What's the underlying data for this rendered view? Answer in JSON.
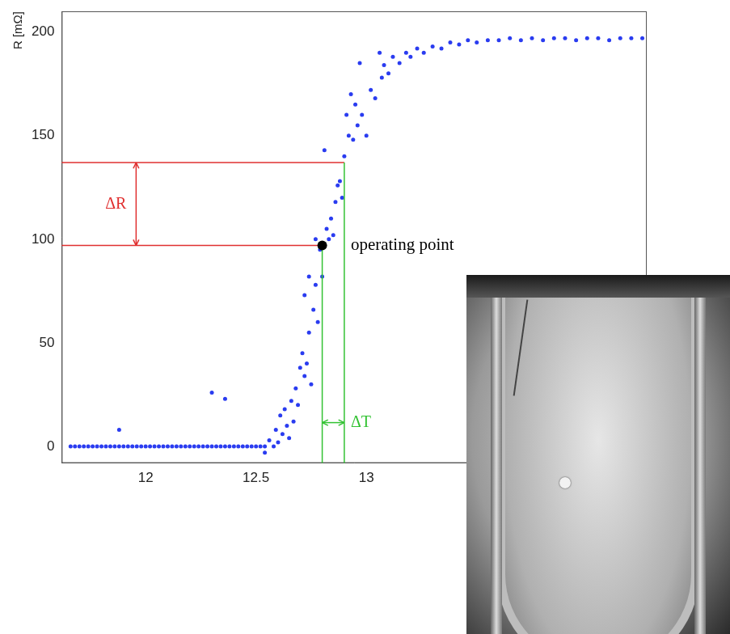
{
  "chart_data": {
    "type": "scatter",
    "y_label": "R [mΩ]",
    "color": "#2a3cf0",
    "x": [
      11.66,
      11.68,
      11.7,
      11.72,
      11.74,
      11.76,
      11.78,
      11.8,
      11.82,
      11.84,
      11.86,
      11.88,
      11.9,
      11.92,
      11.94,
      11.96,
      11.98,
      12.0,
      12.02,
      12.04,
      12.06,
      12.08,
      12.1,
      12.12,
      12.14,
      12.16,
      12.18,
      12.2,
      12.22,
      12.24,
      12.26,
      12.28,
      12.3,
      12.32,
      12.34,
      12.36,
      12.38,
      12.4,
      12.42,
      12.44,
      12.46,
      12.48,
      12.5,
      12.52,
      12.54,
      11.88,
      12.3,
      12.36,
      12.54,
      12.56,
      12.58,
      12.59,
      12.6,
      12.61,
      12.62,
      12.63,
      12.64,
      12.65,
      12.66,
      12.67,
      12.68,
      12.69,
      12.7,
      12.71,
      12.72,
      12.72,
      12.73,
      12.74,
      12.74,
      12.75,
      12.76,
      12.77,
      12.77,
      12.78,
      12.79,
      12.8,
      12.81,
      12.82,
      12.83,
      12.84,
      12.85,
      12.86,
      12.87,
      12.88,
      12.89,
      12.9,
      12.91,
      12.92,
      12.93,
      12.94,
      12.95,
      12.96,
      12.97,
      12.98,
      13.0,
      13.02,
      13.04,
      13.06,
      13.07,
      13.08,
      13.1,
      13.12,
      13.15,
      13.18,
      13.2,
      13.23,
      13.26,
      13.3,
      13.34,
      13.38,
      13.42,
      13.46,
      13.5,
      13.55,
      13.6,
      13.65,
      13.7,
      13.75,
      13.8,
      13.85,
      13.9,
      13.95,
      14.0,
      14.05,
      14.1,
      14.15,
      14.2,
      14.25
    ],
    "values": [
      0,
      0,
      0,
      0,
      0,
      0,
      0,
      0,
      0,
      0,
      0,
      0,
      0,
      0,
      0,
      0,
      0,
      0,
      0,
      0,
      0,
      0,
      0,
      0,
      0,
      0,
      0,
      0,
      0,
      0,
      0,
      0,
      0,
      0,
      0,
      0,
      0,
      0,
      0,
      0,
      0,
      0,
      0,
      0,
      0,
      8,
      26,
      23,
      -3,
      3,
      0,
      8,
      2,
      15,
      6,
      18,
      10,
      4,
      22,
      12,
      28,
      20,
      38,
      45,
      34,
      73,
      40,
      55,
      82,
      30,
      66,
      78,
      100,
      60,
      95,
      82,
      143,
      105,
      100,
      110,
      102,
      118,
      126,
      128,
      120,
      140,
      160,
      150,
      170,
      148,
      165,
      155,
      185,
      160,
      150,
      172,
      168,
      190,
      178,
      184,
      180,
      188,
      185,
      190,
      188,
      192,
      190,
      193,
      192,
      195,
      194,
      196,
      195,
      196,
      196,
      197,
      196,
      197,
      196,
      197,
      197,
      196,
      197,
      197,
      196,
      197,
      197,
      197
    ],
    "xlim": [
      11.62,
      14.27
    ],
    "xticks": [
      12,
      12.5,
      13
    ],
    "ylim": [
      -8,
      210
    ],
    "yticks": [
      0,
      50,
      100,
      150,
      200
    ],
    "grid": false,
    "operating_point": {
      "x": 12.8,
      "y": 97,
      "label": "operating point",
      "color": "#000000"
    },
    "delta_r": {
      "label": "ΔR",
      "from": 97,
      "to": 137,
      "color": "#e03030"
    },
    "delta_t": {
      "label": "ΔT",
      "from": 12.8,
      "to": 12.9,
      "color": "#33c233"
    }
  }
}
